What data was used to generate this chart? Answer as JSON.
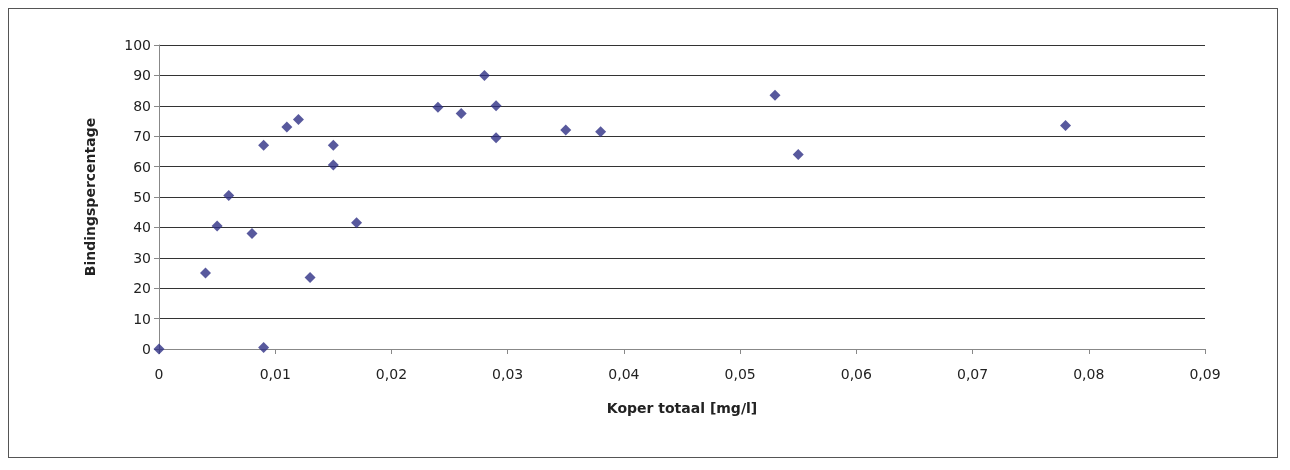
{
  "chart_data": {
    "type": "scatter",
    "xlabel": "Koper totaal [mg/l]",
    "ylabel": "Bindingspercentage",
    "x": [
      0,
      0.004,
      0.005,
      0.006,
      0.008,
      0.009,
      0.009,
      0.011,
      0.012,
      0.013,
      0.015,
      0.015,
      0.017,
      0.024,
      0.026,
      0.028,
      0.029,
      0.029,
      0.035,
      0.038,
      0.053,
      0.055,
      0.078
    ],
    "series": [
      {
        "color": "#2e3085",
        "values": [
          0,
          25,
          40.5,
          50.5,
          38,
          67,
          0.5,
          73,
          75.5,
          23.5,
          67,
          60.5,
          41.5,
          79.5,
          77.5,
          90,
          80,
          69.5,
          72,
          71.5,
          83.5,
          64,
          73.5
        ]
      }
    ],
    "xlim": [
      0,
      0.09
    ],
    "xticks": [
      {
        "value": 0,
        "label": "0"
      },
      {
        "value": 0.01,
        "label": "0,01"
      },
      {
        "value": 0.02,
        "label": "0,02"
      },
      {
        "value": 0.03,
        "label": "0,03"
      },
      {
        "value": 0.04,
        "label": "0,04"
      },
      {
        "value": 0.05,
        "label": "0,05"
      },
      {
        "value": 0.06,
        "label": "0,06"
      },
      {
        "value": 0.07,
        "label": "0,07"
      },
      {
        "value": 0.08,
        "label": "0,08"
      },
      {
        "value": 0.09,
        "label": "0,09"
      }
    ],
    "ylim": [
      0,
      100
    ],
    "yticks": [
      0,
      10,
      20,
      30,
      40,
      50,
      60,
      70,
      80,
      90,
      100
    ],
    "grid": "y",
    "marker": "diamond"
  }
}
